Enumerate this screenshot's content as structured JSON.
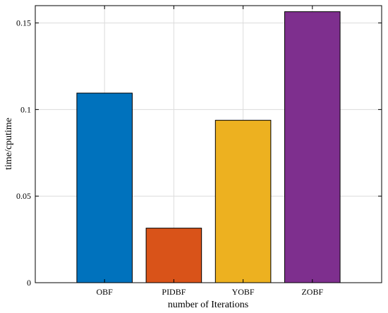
{
  "chart_data": {
    "type": "bar",
    "title": "",
    "xlabel": "number of Iterations",
    "ylabel": "time/cputime",
    "categories": [
      "OBF",
      "PIDBF",
      "YOBF",
      "ZOBF"
    ],
    "values": [
      0.1095,
      0.0315,
      0.0938,
      0.1565
    ],
    "colors": [
      "#0072BD",
      "#D95319",
      "#EDB120",
      "#7E2F8E"
    ],
    "ylim": [
      0,
      0.16
    ],
    "yticks": [
      0,
      0.05,
      0.1,
      0.15
    ],
    "ytick_labels": [
      "0",
      "0.05",
      "0.1",
      "0.15"
    ],
    "xlim": [
      0,
      5
    ],
    "grid": true,
    "box": true,
    "legend": "none"
  }
}
